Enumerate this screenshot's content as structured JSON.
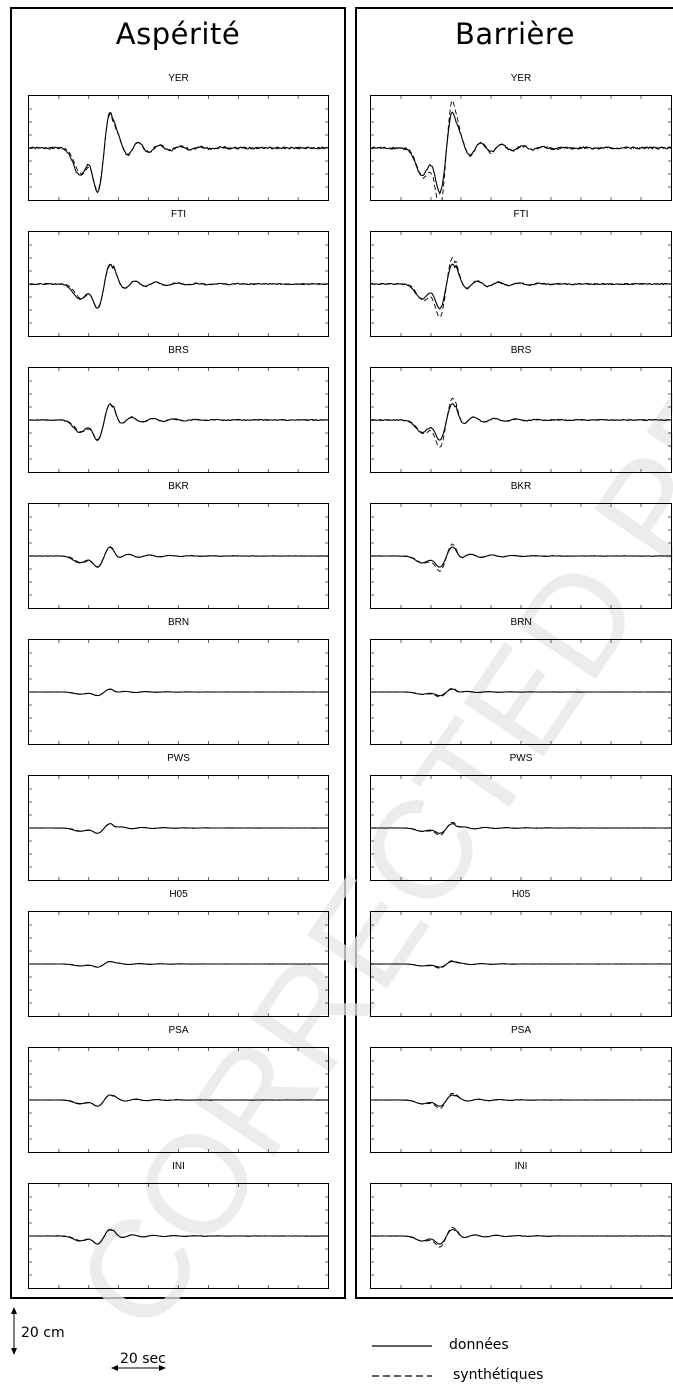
{
  "panels": [
    {
      "title": "Aspérité"
    },
    {
      "title": "Barrière"
    }
  ],
  "stations": [
    {
      "name": "YER",
      "amp": 1.0
    },
    {
      "name": "FTI",
      "amp": 0.55
    },
    {
      "name": "BRS",
      "amp": 0.45
    },
    {
      "name": "BKR",
      "amp": 0.25
    },
    {
      "name": "BRN",
      "amp": 0.08
    },
    {
      "name": "PWS",
      "amp": 0.12
    },
    {
      "name": "H05",
      "amp": 0.07
    },
    {
      "name": "PSA",
      "amp": 0.14
    },
    {
      "name": "INI",
      "amp": 0.18
    }
  ],
  "scale": {
    "amplitude_label": "20 cm",
    "time_label": "20 sec"
  },
  "legend": {
    "data_label": "données",
    "synthetic_label": "synthétiques"
  },
  "watermark": "CORRECTED PROOF"
}
